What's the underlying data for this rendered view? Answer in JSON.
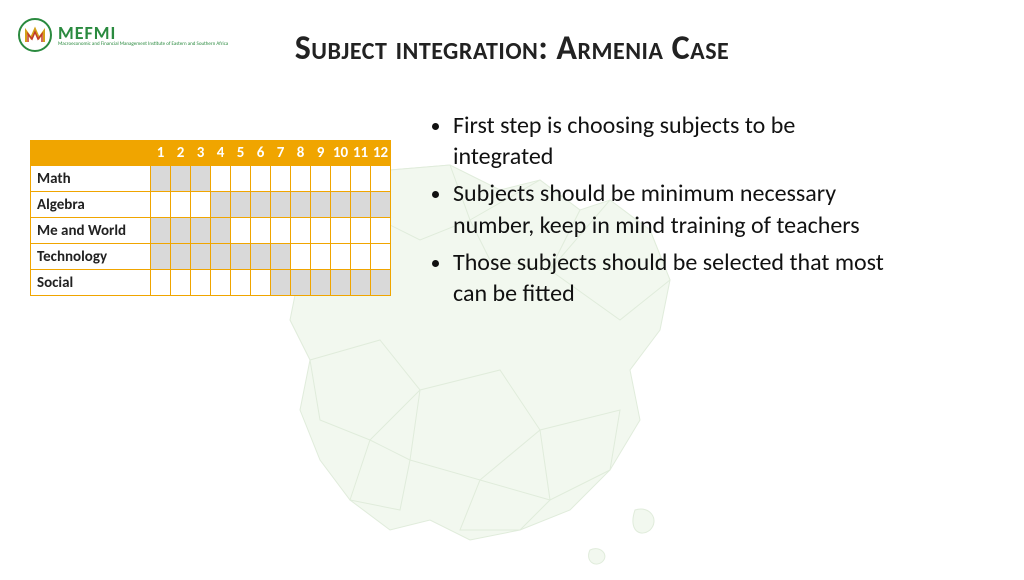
{
  "logo": {
    "name": "MEFMI",
    "subtitle": "Macroeconomic and Financial Management Institute of Eastern and Southern Africa"
  },
  "title": "Subject integration: Armenia Case",
  "table": {
    "header_bg": "#f0a500",
    "header_fg": "#ffffff",
    "border_color": "#f0a500",
    "fill_color": "#d9d9d9",
    "empty_color": "#ffffff",
    "columns": [
      "1",
      "2",
      "3",
      "4",
      "5",
      "6",
      "7",
      "8",
      "9",
      "10",
      "11",
      "12"
    ],
    "rows": [
      {
        "label": "Math",
        "cells": [
          1,
          1,
          1,
          0,
          0,
          0,
          0,
          0,
          0,
          0,
          0,
          0
        ]
      },
      {
        "label": "Algebra",
        "cells": [
          0,
          0,
          0,
          1,
          1,
          1,
          1,
          1,
          1,
          1,
          1,
          1
        ]
      },
      {
        "label": "Me and World",
        "cells": [
          1,
          1,
          1,
          1,
          0,
          0,
          0,
          0,
          0,
          0,
          0,
          0
        ]
      },
      {
        "label": "Technology",
        "cells": [
          1,
          1,
          1,
          1,
          1,
          1,
          1,
          0,
          0,
          0,
          0,
          0
        ]
      },
      {
        "label": "Social",
        "cells": [
          0,
          0,
          0,
          0,
          0,
          0,
          1,
          1,
          1,
          1,
          1,
          1
        ]
      }
    ]
  },
  "bullets": [
    "First step is choosing subjects to be integrated",
    "Subjects should be minimum necessary number, keep in mind training of teachers",
    "Those subjects should be selected that most can be fitted"
  ],
  "map": {
    "fill": "#dcedd4",
    "stroke": "#a8c99a"
  }
}
